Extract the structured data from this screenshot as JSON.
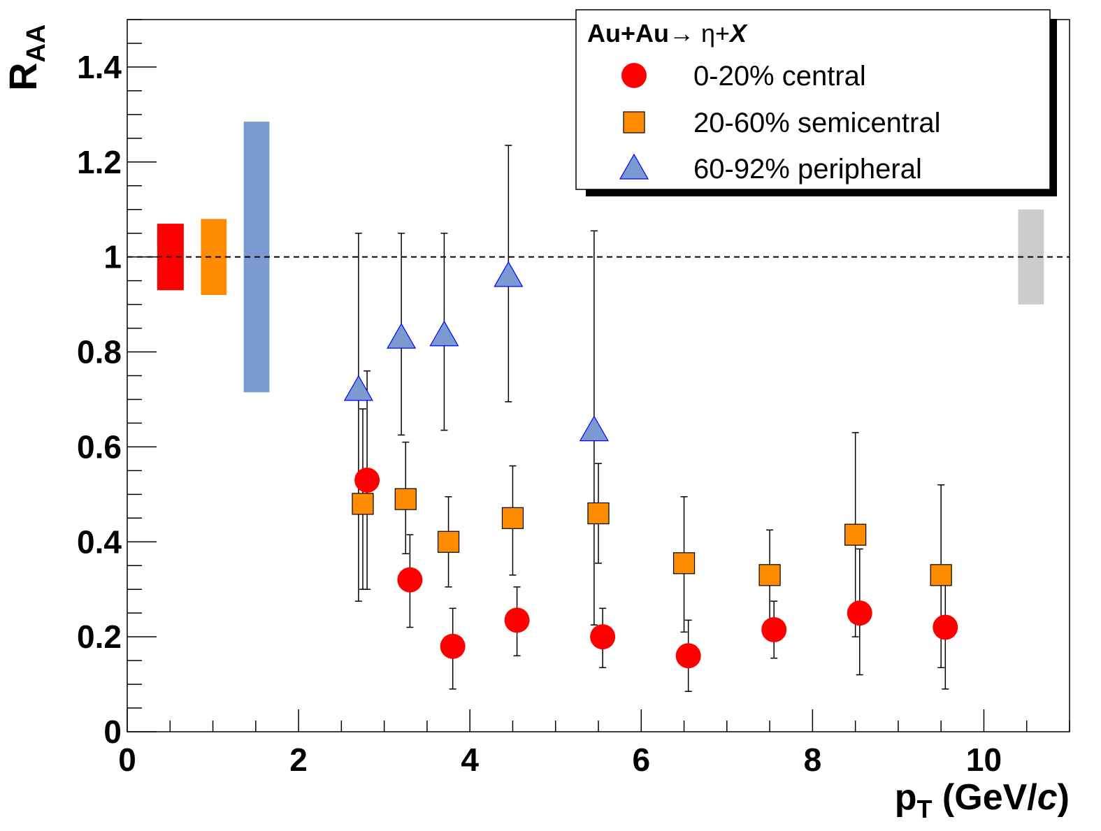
{
  "chart_data": {
    "type": "scatter",
    "title": "",
    "xlabel": {
      "main": "p",
      "sub": "T",
      "rest_before": " (GeV/",
      "italic": "c",
      "rest_after": ")"
    },
    "ylabel": {
      "main": "R",
      "sub": "AA"
    },
    "xlim": [
      0,
      11
    ],
    "ylim": [
      0,
      1.5
    ],
    "x_major_ticks": [
      0,
      2,
      4,
      6,
      8,
      10
    ],
    "x_tick_labels": [
      "0",
      "2",
      "4",
      "6",
      "8",
      "10"
    ],
    "y_major_ticks": [
      0,
      0.2,
      0.4,
      0.6,
      0.8,
      1,
      1.2,
      1.4
    ],
    "y_tick_labels": [
      "0",
      "0.2",
      "0.4",
      "0.6",
      "0.8",
      "1",
      "1.2",
      "1.4"
    ],
    "reference_line": 1,
    "legend": {
      "position": "top-right",
      "title_parts": [
        "Au+Au",
        "→ η+",
        "X"
      ]
    },
    "series": [
      {
        "name": "0-20% central",
        "marker": "circle",
        "color": "#ff0000",
        "points": [
          {
            "x": 2.8,
            "y": 0.53,
            "lo": 0.3,
            "hi": 0.76
          },
          {
            "x": 3.3,
            "y": 0.32,
            "lo": 0.22,
            "hi": 0.415
          },
          {
            "x": 3.8,
            "y": 0.18,
            "lo": 0.09,
            "hi": 0.26
          },
          {
            "x": 4.55,
            "y": 0.235,
            "lo": 0.16,
            "hi": 0.305
          },
          {
            "x": 5.55,
            "y": 0.2,
            "lo": 0.135,
            "hi": 0.26
          },
          {
            "x": 6.55,
            "y": 0.16,
            "lo": 0.085,
            "hi": 0.235
          },
          {
            "x": 7.55,
            "y": 0.215,
            "lo": 0.155,
            "hi": 0.275
          },
          {
            "x": 8.55,
            "y": 0.25,
            "lo": 0.12,
            "hi": 0.385
          },
          {
            "x": 9.55,
            "y": 0.22,
            "lo": 0.09,
            "hi": 0.35
          }
        ]
      },
      {
        "name": "20-60% semicentral",
        "marker": "square",
        "color": "#ff8c00",
        "points": [
          {
            "x": 2.75,
            "y": 0.48,
            "lo": 0.3,
            "hi": 0.68
          },
          {
            "x": 3.25,
            "y": 0.49,
            "lo": 0.375,
            "hi": 0.61
          },
          {
            "x": 3.75,
            "y": 0.4,
            "lo": 0.305,
            "hi": 0.495
          },
          {
            "x": 4.5,
            "y": 0.45,
            "lo": 0.33,
            "hi": 0.56
          },
          {
            "x": 5.5,
            "y": 0.46,
            "lo": 0.355,
            "hi": 0.565
          },
          {
            "x": 6.5,
            "y": 0.355,
            "lo": 0.21,
            "hi": 0.495
          },
          {
            "x": 7.5,
            "y": 0.33,
            "lo": 0.23,
            "hi": 0.425
          },
          {
            "x": 8.5,
            "y": 0.415,
            "lo": 0.2,
            "hi": 0.63
          },
          {
            "x": 9.5,
            "y": 0.33,
            "lo": 0.135,
            "hi": 0.52
          }
        ]
      },
      {
        "name": "60-92% peripheral",
        "marker": "triangle",
        "color": "#7b9ad0",
        "edge_color": "#0000ff",
        "points": [
          {
            "x": 2.7,
            "y": 0.72,
            "lo": 0.275,
            "hi": 1.05
          },
          {
            "x": 3.2,
            "y": 0.83,
            "lo": 0.625,
            "hi": 1.05
          },
          {
            "x": 3.7,
            "y": 0.835,
            "lo": 0.635,
            "hi": 1.05
          },
          {
            "x": 4.45,
            "y": 0.96,
            "lo": 0.695,
            "hi": 1.235
          },
          {
            "x": 5.45,
            "y": 0.635,
            "lo": 0.225,
            "hi": 1.055
          }
        ]
      }
    ],
    "systematic_boxes": [
      {
        "x0": 0.35,
        "x1": 0.66,
        "y0": 0.93,
        "y1": 1.07,
        "color": "#ff0000"
      },
      {
        "x0": 0.86,
        "x1": 1.16,
        "y0": 0.92,
        "y1": 1.08,
        "color": "#ff8c00"
      },
      {
        "x0": 1.36,
        "x1": 1.66,
        "y0": 0.715,
        "y1": 1.285,
        "color": "#7b9ad0"
      },
      {
        "x0": 10.4,
        "x1": 10.7,
        "y0": 0.9,
        "y1": 1.1,
        "color": "#cccccc"
      }
    ]
  }
}
